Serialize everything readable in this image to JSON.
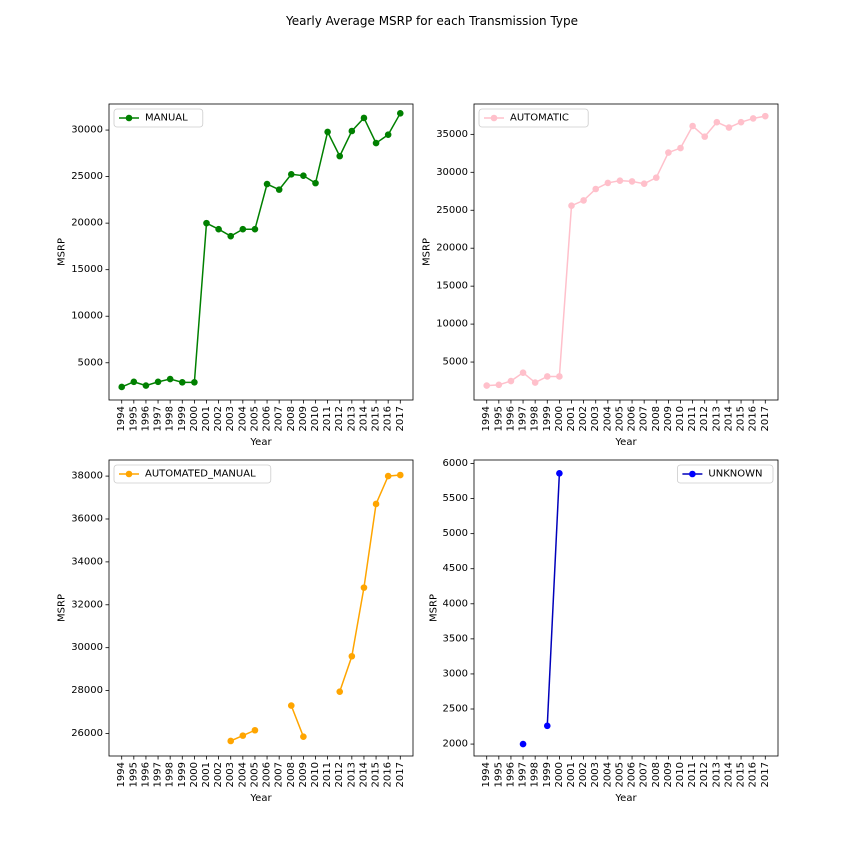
{
  "figure": {
    "title": "Yearly Average MSRP for each Transmission Type"
  },
  "chart_data": [
    {
      "type": "line",
      "title": "",
      "xlabel": "Year",
      "ylabel": "MSRP",
      "legend": {
        "label": "MANUAL",
        "placement": "top-left"
      },
      "color": "#008000",
      "x_ticks": [
        "1994",
        "1995",
        "1996",
        "1997",
        "1998",
        "1999",
        "2000",
        "2001",
        "2002",
        "2003",
        "2004",
        "2005",
        "2006",
        "2007",
        "2008",
        "2009",
        "2010",
        "2011",
        "2012",
        "2013",
        "2014",
        "2015",
        "2016",
        "2017"
      ],
      "y_ticks": [
        5000,
        10000,
        15000,
        20000,
        25000,
        30000
      ],
      "ylim": [
        1000,
        32800
      ],
      "series": [
        {
          "name": "MANUAL",
          "x": [
            1994,
            1995,
            1996,
            1997,
            1998,
            1999,
            2000,
            2001,
            2002,
            2003,
            2004,
            2005,
            2006,
            2007,
            2008,
            2009,
            2010,
            2011,
            2012,
            2013,
            2014,
            2015,
            2016,
            2017
          ],
          "y": [
            2400,
            2950,
            2550,
            2950,
            3250,
            2900,
            2900,
            20000,
            19350,
            18600,
            19350,
            19350,
            24200,
            23600,
            25250,
            25100,
            24300,
            29800,
            27200,
            29900,
            31300,
            28600,
            29500,
            31800
          ]
        }
      ]
    },
    {
      "type": "line",
      "title": "",
      "xlabel": "Year",
      "ylabel": "MSRP",
      "legend": {
        "label": "AUTOMATIC",
        "placement": "top-left"
      },
      "color": "#ffc0cb",
      "x_ticks": [
        "1994",
        "1995",
        "1996",
        "1997",
        "1998",
        "1999",
        "2000",
        "2001",
        "2002",
        "2003",
        "2004",
        "2005",
        "2006",
        "2007",
        "2008",
        "2009",
        "2010",
        "2011",
        "2012",
        "2013",
        "2014",
        "2015",
        "2016",
        "2017"
      ],
      "y_ticks": [
        5000,
        10000,
        15000,
        20000,
        25000,
        30000,
        35000
      ],
      "ylim": [
        0,
        39000
      ],
      "series": [
        {
          "name": "AUTOMATIC",
          "x": [
            1994,
            1995,
            1996,
            1997,
            1998,
            1999,
            2000,
            2001,
            2002,
            2003,
            2004,
            2005,
            2006,
            2007,
            2008,
            2009,
            2010,
            2011,
            2012,
            2013,
            2014,
            2015,
            2016,
            2017
          ],
          "y": [
            1900,
            2000,
            2500,
            3600,
            2300,
            3100,
            3100,
            25600,
            26300,
            27800,
            28600,
            28900,
            28800,
            28500,
            29300,
            32600,
            33200,
            36100,
            34700,
            36600,
            35900,
            36600,
            37100,
            37400
          ]
        }
      ]
    },
    {
      "type": "line",
      "title": "",
      "xlabel": "Year",
      "ylabel": "MSRP",
      "legend": {
        "label": "AUTOMATED_MANUAL",
        "placement": "top-left"
      },
      "color": "#ffa500",
      "x_ticks": [
        "1994",
        "1995",
        "1996",
        "1997",
        "1998",
        "1999",
        "2000",
        "2001",
        "2002",
        "2003",
        "2004",
        "2005",
        "2006",
        "2007",
        "2008",
        "2009",
        "2010",
        "2011",
        "2012",
        "2013",
        "2014",
        "2015",
        "2016",
        "2017"
      ],
      "y_ticks": [
        26000,
        28000,
        30000,
        32000,
        34000,
        36000,
        38000
      ],
      "ylim": [
        24950,
        38750
      ],
      "series": [
        {
          "name": "AUTOMATED_MANUAL",
          "x": [
            1994,
            1995,
            1996,
            1997,
            1998,
            1999,
            2000,
            2001,
            2002,
            2003,
            2004,
            2005,
            2006,
            2007,
            2008,
            2009,
            2010,
            2011,
            2012,
            2013,
            2014,
            2015,
            2016,
            2017
          ],
          "y": [
            null,
            null,
            null,
            null,
            null,
            null,
            null,
            null,
            null,
            25650,
            25900,
            26150,
            null,
            null,
            27300,
            25850,
            null,
            null,
            27950,
            29600,
            32800,
            36700,
            38000,
            38050
          ]
        }
      ]
    },
    {
      "type": "line",
      "title": "",
      "xlabel": "Year",
      "ylabel": "MSRP",
      "legend": {
        "label": "UNKNOWN",
        "placement": "top-right"
      },
      "color": "#0000ff",
      "line_color": "#0000bb",
      "x_ticks": [
        "1994",
        "1995",
        "1996",
        "1997",
        "1998",
        "1999",
        "2000",
        "2001",
        "2002",
        "2003",
        "2004",
        "2005",
        "2006",
        "2007",
        "2008",
        "2009",
        "2010",
        "2011",
        "2012",
        "2013",
        "2014",
        "2015",
        "2016",
        "2017"
      ],
      "y_ticks": [
        2000,
        2500,
        3000,
        3500,
        4000,
        4500,
        5000,
        5500,
        6000
      ],
      "ylim": [
        1830,
        6050
      ],
      "series": [
        {
          "name": "UNKNOWN",
          "x": [
            1994,
            1995,
            1996,
            1997,
            1998,
            1999,
            2000,
            2001,
            2002,
            2003,
            2004,
            2005,
            2006,
            2007,
            2008,
            2009,
            2010,
            2011,
            2012,
            2013,
            2014,
            2015,
            2016,
            2017
          ],
          "y": [
            null,
            null,
            null,
            2000,
            null,
            2260,
            5860,
            null,
            null,
            null,
            null,
            null,
            null,
            null,
            null,
            null,
            null,
            null,
            null,
            null,
            null,
            null,
            null,
            null
          ]
        }
      ]
    }
  ]
}
